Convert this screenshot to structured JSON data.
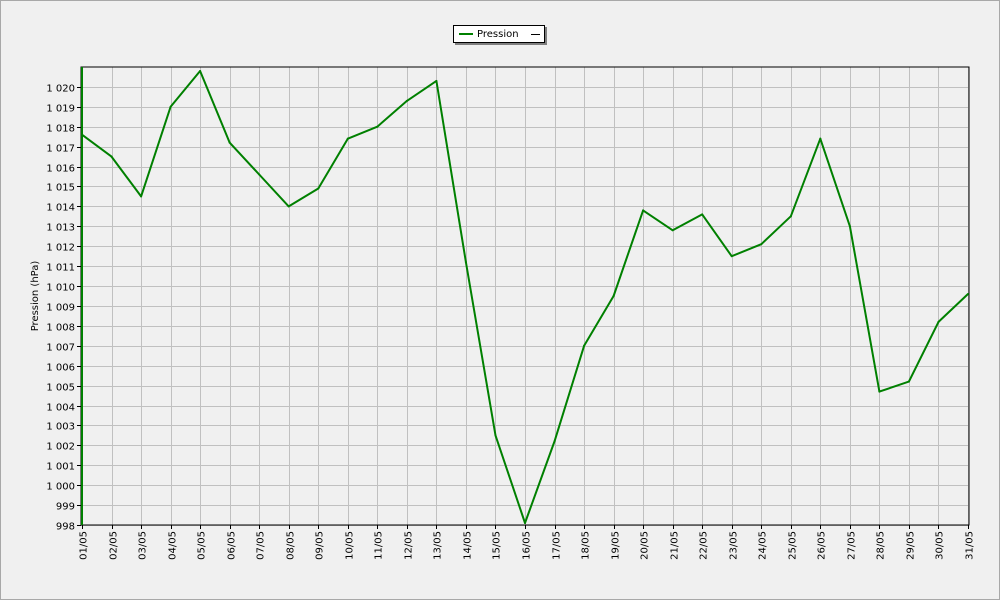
{
  "chart_data": {
    "type": "line",
    "ylabel": "Pression (hPa)",
    "categories": [
      "01/05",
      "02/05",
      "03/05",
      "04/05",
      "05/05",
      "06/05",
      "07/05",
      "08/05",
      "09/05",
      "10/05",
      "11/05",
      "12/05",
      "13/05",
      "14/05",
      "15/05",
      "16/05",
      "17/05",
      "18/05",
      "19/05",
      "20/05",
      "21/05",
      "22/05",
      "23/05",
      "24/05",
      "25/05",
      "26/05",
      "27/05",
      "28/05",
      "29/05",
      "30/05",
      "31/05"
    ],
    "series": [
      {
        "name": "Pression",
        "color": "#008000",
        "values": [
          1017.6,
          1016.5,
          1014.5,
          1019.0,
          1020.8,
          1017.2,
          1015.6,
          1014.0,
          1014.9,
          1017.4,
          1018.0,
          1019.3,
          1020.3,
          1011.2,
          1002.5,
          998.1,
          1002.2,
          1007.0,
          1009.5,
          1013.8,
          1012.8,
          1013.6,
          1011.5,
          1012.1,
          1013.5,
          1017.4,
          1013.0,
          1004.7,
          1005.2,
          1008.2,
          1009.6
        ]
      }
    ],
    "ylim": [
      998,
      1021
    ],
    "yticks": [
      "998",
      "999",
      "1 000",
      "1 001",
      "1 002",
      "1 003",
      "1 004",
      "1 005",
      "1 006",
      "1 007",
      "1 008",
      "1 009",
      "1 010",
      "1 011",
      "1 012",
      "1 013",
      "1 014",
      "1 015",
      "1 016",
      "1 017",
      "1 018",
      "1 019",
      "1 020"
    ],
    "grid": true,
    "legend_position": "top-center"
  },
  "colors": {
    "background": "#f0f0f0",
    "grid": "#c0c0c0",
    "series": "#008000"
  }
}
